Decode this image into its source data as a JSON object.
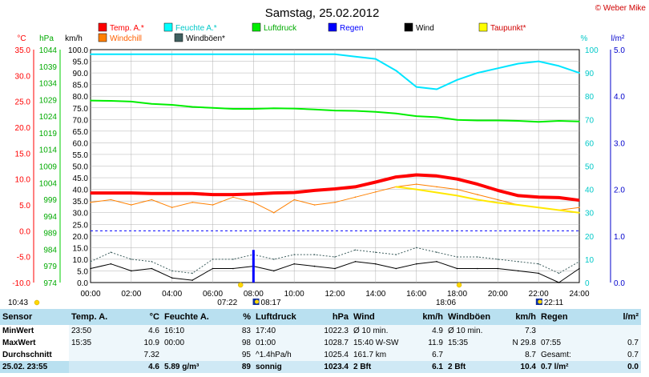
{
  "header": {
    "title": "Samstag, 25.02.2012",
    "copyright": "© Weber Mike"
  },
  "legend": [
    {
      "label": "Temp. A.*",
      "color": "#ff0000"
    },
    {
      "label": "Feuchte A.*",
      "color": "#00ffff"
    },
    {
      "label": "Luftdruck",
      "color": "#00ee00"
    },
    {
      "label": "Regen",
      "color": "#0000ff"
    },
    {
      "label": "Wind",
      "color": "#000000"
    },
    {
      "label": "Taupunkt*",
      "color": "#ffff00"
    },
    {
      "label": "Windchill",
      "color": "#ff8000"
    },
    {
      "label": "Windböen*",
      "color": "#406060"
    }
  ],
  "axes": {
    "temp": {
      "unit": "°C",
      "ticks": [
        "35.0",
        "30.0",
        "25.0",
        "20.0",
        "15.0",
        "10.0",
        "5.0",
        "0.0",
        "-5.0",
        "-10.0"
      ]
    },
    "pressure": {
      "unit": "hPa",
      "ticks": [
        "1044",
        "1039",
        "1034",
        "1029",
        "1024",
        "1019",
        "1014",
        "1009",
        "1004",
        "999",
        "994",
        "989",
        "984",
        "979",
        "974"
      ]
    },
    "wind": {
      "unit": "km/h",
      "ticks": [
        "100.0",
        "95.0",
        "90.0",
        "85.0",
        "80.0",
        "75.0",
        "70.0",
        "65.0",
        "60.0",
        "55.0",
        "50.0",
        "45.0",
        "40.0",
        "35.0",
        "30.0",
        "25.0",
        "20.0",
        "15.0",
        "10.0",
        "5.0",
        "0.0"
      ]
    },
    "humidity": {
      "unit": "%",
      "ticks": [
        "100",
        "90",
        "80",
        "70",
        "60",
        "50",
        "40",
        "30",
        "20",
        "10",
        "0"
      ]
    },
    "rain": {
      "unit": "l/m²",
      "ticks": [
        "5.0",
        "4.0",
        "3.0",
        "2.0",
        "1.0",
        "0.0"
      ]
    },
    "time": {
      "ticks": [
        "00:00",
        "02:00",
        "04:00",
        "06:00",
        "08:00",
        "10:00",
        "12:00",
        "14:00",
        "16:00",
        "18:00",
        "20:00",
        "22:00",
        "24:00"
      ]
    }
  },
  "sun_moon": {
    "sunrise": "07:22",
    "sunset": "18:06",
    "moonrise": "08:17",
    "moonset": "22:11",
    "sunrise_prev": "10:43"
  },
  "chart_data": {
    "type": "line",
    "x": [
      "00:00",
      "01:00",
      "02:00",
      "03:00",
      "04:00",
      "05:00",
      "06:00",
      "07:00",
      "08:00",
      "09:00",
      "10:00",
      "11:00",
      "12:00",
      "13:00",
      "14:00",
      "15:00",
      "16:00",
      "17:00",
      "18:00",
      "19:00",
      "20:00",
      "21:00",
      "22:00",
      "23:00",
      "24:00"
    ],
    "xlim": [
      "00:00",
      "24:00"
    ],
    "series": [
      {
        "name": "Temp. A.*",
        "unit": "°C",
        "values": [
          7.3,
          7.3,
          7.3,
          7.2,
          7.2,
          7.2,
          7.0,
          7.0,
          7.1,
          7.3,
          7.4,
          7.8,
          8.1,
          8.5,
          9.4,
          10.4,
          10.8,
          10.6,
          10.0,
          9.0,
          7.8,
          6.8,
          6.5,
          6.4,
          5.9
        ]
      },
      {
        "name": "Windchill",
        "unit": "°C",
        "values": [
          5.5,
          6.0,
          5.0,
          6.0,
          4.5,
          5.5,
          5.0,
          6.5,
          5.5,
          3.5,
          6.0,
          5.0,
          5.5,
          6.5,
          7.5,
          8.5,
          9.0,
          8.5,
          8.0,
          7.0,
          6.0,
          5.0,
          4.5,
          4.0,
          4.5
        ]
      },
      {
        "name": "Taupunkt*",
        "unit": "°C",
        "values": [
          null,
          null,
          null,
          null,
          null,
          null,
          null,
          null,
          null,
          null,
          null,
          null,
          null,
          null,
          null,
          8.5,
          8.0,
          7.4,
          6.8,
          6.0,
          5.4,
          5.0,
          4.5,
          4.0,
          3.5
        ]
      },
      {
        "name": "Feuchte A.*",
        "unit": "%",
        "values": [
          98,
          98,
          98,
          98,
          98,
          98,
          98,
          98,
          98,
          98,
          98,
          98,
          98,
          97,
          96,
          91,
          84,
          83,
          87,
          90,
          92,
          94,
          95,
          93,
          90
        ]
      },
      {
        "name": "Luftdruck",
        "unit": "hPa",
        "values": [
          1028.7,
          1028.6,
          1028.4,
          1027.7,
          1027.4,
          1026.8,
          1026.5,
          1026.2,
          1026.2,
          1026.4,
          1026.3,
          1026.0,
          1025.7,
          1025.6,
          1025.3,
          1024.8,
          1024.0,
          1023.7,
          1022.9,
          1022.7,
          1022.7,
          1022.6,
          1022.3,
          1022.6,
          1022.4
        ]
      },
      {
        "name": "Wind",
        "unit": "km/h",
        "values": [
          6,
          8,
          5,
          6,
          2,
          1,
          6,
          6,
          7,
          5,
          8,
          7,
          6,
          9,
          8,
          6,
          8,
          9,
          6,
          6,
          6,
          5,
          4,
          0,
          6
        ]
      },
      {
        "name": "Windböen*",
        "unit": "km/h",
        "values": [
          9,
          13,
          10,
          9,
          5,
          4,
          10,
          10,
          12,
          10,
          12,
          12,
          11,
          14,
          13,
          12,
          15,
          13,
          11,
          11,
          10,
          9,
          8,
          4,
          9
        ]
      },
      {
        "name": "Regen",
        "unit": "l/m²",
        "values": [
          0,
          0,
          0,
          0,
          0,
          0,
          0,
          0,
          0.7,
          0,
          0,
          0,
          0,
          0,
          0,
          0,
          0,
          0,
          0,
          0,
          0,
          0,
          0,
          0,
          0
        ]
      }
    ],
    "ylim_temp": [
      -10,
      35
    ],
    "ylim_pressure": [
      974,
      1044
    ],
    "ylim_wind": [
      0,
      100
    ],
    "ylim_humidity": [
      0,
      100
    ],
    "ylim_rain": [
      0,
      5
    ],
    "grid": true
  },
  "stats": {
    "headers": [
      "Sensor",
      "Temp. A.",
      "°C",
      "Feuchte A.",
      "%",
      "Luftdruck",
      "hPa",
      "Wind",
      "km/h",
      "Windböen",
      "km/h",
      "Regen",
      "l/m²"
    ],
    "rows": [
      {
        "label": "MinWert",
        "cells": [
          "23:50",
          "4.6",
          "16:10",
          "83",
          "17:40",
          "1022.3",
          "Ø 10 min.",
          "4.9",
          "Ø 10 min.",
          "7.3",
          "",
          ""
        ]
      },
      {
        "label": "MaxWert",
        "cells": [
          "15:35",
          "10.9",
          "00:00",
          "98",
          "01:00",
          "1028.7",
          "15:40  W-SW",
          "11.9",
          "15:35",
          "N 29.8",
          "07:55",
          "0.7"
        ]
      },
      {
        "label": "Durchschnitt",
        "cells": [
          "",
          "7.32",
          "",
          "95",
          "^1.4hPa/h",
          "1025.4",
          "161.7 km",
          "6.7",
          "",
          "8.7",
          "Gesamt:",
          "0.7"
        ]
      },
      {
        "label": "25.02. 23:55",
        "cells": [
          "",
          "4.6",
          "5.89 g/m³",
          "89",
          "sonnig",
          "1023.4",
          "2 Bft",
          "6.1",
          "2 Bft",
          "10.4",
          "0.7 l/m²",
          "0.0"
        ]
      }
    ]
  }
}
